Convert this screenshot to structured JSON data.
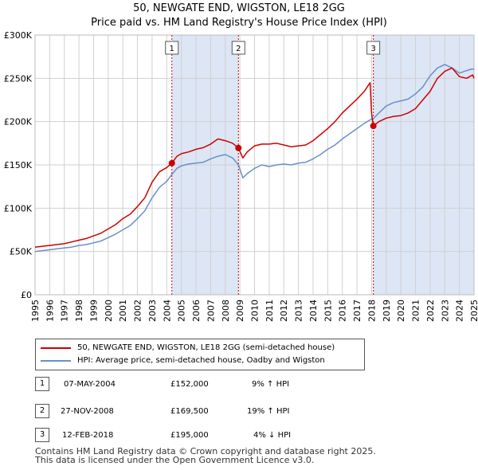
{
  "title": "50, NEWGATE END, WIGSTON, LE18 2GG",
  "subtitle": "Price paid vs. HM Land Registry's House Price Index (HPI)",
  "colors": {
    "price": "#cc0000",
    "hpi": "#6a8fc8",
    "shade": "#dde6f5",
    "marker_line": "#cc0000"
  },
  "chart_data": {
    "type": "line",
    "xlim": [
      1995,
      2025
    ],
    "ylim": [
      0,
      300000
    ],
    "y_ticks": [
      {
        "value": 0,
        "label": "£0"
      },
      {
        "value": 50000,
        "label": "£50K"
      },
      {
        "value": 100000,
        "label": "£100K"
      },
      {
        "value": 150000,
        "label": "£150K"
      },
      {
        "value": 200000,
        "label": "£200K"
      },
      {
        "value": 250000,
        "label": "£250K"
      },
      {
        "value": 300000,
        "label": "£300K"
      }
    ],
    "x_ticks": [
      "1995",
      "1996",
      "1997",
      "1998",
      "1999",
      "2000",
      "2001",
      "2002",
      "2003",
      "2004",
      "2005",
      "2006",
      "2007",
      "2008",
      "2009",
      "2010",
      "2011",
      "2012",
      "2013",
      "2014",
      "2015",
      "2016",
      "2017",
      "2018",
      "2019",
      "2020",
      "2021",
      "2022",
      "2023",
      "2024",
      "2025"
    ],
    "series": [
      {
        "name": "50, NEWGATE END, WIGSTON, LE18 2GG (semi-detached house)",
        "color": "#cc0000",
        "x": [
          1995.0,
          1995.5,
          1996.0,
          1996.5,
          1997.0,
          1997.5,
          1998.0,
          1998.5,
          1999.0,
          1999.5,
          2000.0,
          2000.5,
          2001.0,
          2001.5,
          2002.0,
          2002.5,
          2003.0,
          2003.5,
          2004.0,
          2004.35,
          2004.7,
          2005.0,
          2005.5,
          2006.0,
          2006.5,
          2007.0,
          2007.5,
          2008.0,
          2008.5,
          2008.9,
          2009.2,
          2009.5,
          2010.0,
          2010.5,
          2011.0,
          2011.5,
          2012.0,
          2012.5,
          2013.0,
          2013.5,
          2014.0,
          2014.5,
          2015.0,
          2015.5,
          2016.0,
          2016.5,
          2017.0,
          2017.5,
          2017.9,
          2018.0,
          2018.12,
          2018.5,
          2019.0,
          2019.5,
          2020.0,
          2020.5,
          2021.0,
          2021.5,
          2022.0,
          2022.5,
          2023.0,
          2023.5,
          2024.0,
          2024.5,
          2024.9,
          2025.0
        ],
        "y": [
          55000,
          56000,
          57000,
          58000,
          59000,
          61000,
          63000,
          65000,
          68000,
          71000,
          76000,
          81000,
          88000,
          93000,
          102000,
          112000,
          130000,
          142000,
          147000,
          152000,
          160000,
          163000,
          165000,
          168000,
          170000,
          174000,
          180000,
          178000,
          175000,
          169500,
          158000,
          165000,
          172000,
          174000,
          174000,
          175000,
          173000,
          171000,
          172000,
          173000,
          178000,
          185000,
          192000,
          200000,
          210000,
          218000,
          226000,
          235000,
          245000,
          210000,
          195000,
          200000,
          204000,
          206000,
          207000,
          210000,
          215000,
          225000,
          235000,
          250000,
          258000,
          262000,
          252000,
          250000,
          254000,
          250000
        ]
      },
      {
        "name": "HPI: Average price, semi-detached house, Oadby and Wigston",
        "color": "#6a8fc8",
        "x": [
          1995.0,
          1995.5,
          1996.0,
          1996.5,
          1997.0,
          1997.5,
          1998.0,
          1998.5,
          1999.0,
          1999.5,
          2000.0,
          2000.5,
          2001.0,
          2001.5,
          2002.0,
          2002.5,
          2003.0,
          2003.5,
          2004.0,
          2004.35,
          2004.7,
          2005.0,
          2005.5,
          2006.0,
          2006.5,
          2007.0,
          2007.5,
          2008.0,
          2008.5,
          2008.9,
          2009.2,
          2009.5,
          2010.0,
          2010.5,
          2011.0,
          2011.5,
          2012.0,
          2012.5,
          2013.0,
          2013.5,
          2014.0,
          2014.5,
          2015.0,
          2015.5,
          2016.0,
          2016.5,
          2017.0,
          2017.5,
          2017.9,
          2018.0,
          2018.12,
          2018.5,
          2019.0,
          2019.5,
          2020.0,
          2020.5,
          2021.0,
          2021.5,
          2022.0,
          2022.5,
          2023.0,
          2023.5,
          2024.0,
          2024.5,
          2024.9,
          2025.0
        ],
        "y": [
          50000,
          51000,
          52000,
          53000,
          54000,
          55000,
          57000,
          58000,
          60000,
          62000,
          66000,
          70000,
          75000,
          80000,
          88000,
          97000,
          112000,
          124000,
          131000,
          139000,
          146000,
          149000,
          151000,
          152000,
          153000,
          157000,
          160000,
          162000,
          158000,
          150000,
          135000,
          140000,
          146000,
          150000,
          148000,
          150000,
          151000,
          150000,
          152000,
          153000,
          157000,
          162000,
          168000,
          173000,
          180000,
          186000,
          192000,
          198000,
          202000,
          203000,
          203500,
          210000,
          218000,
          222000,
          224000,
          226000,
          232000,
          240000,
          253000,
          262000,
          266000,
          262000,
          256000,
          259000,
          261000,
          260000
        ]
      }
    ],
    "markers": [
      {
        "label": "1",
        "x": 2004.35,
        "y": 152000
      },
      {
        "label": "2",
        "x": 2008.9,
        "y": 169500
      },
      {
        "label": "3",
        "x": 2018.12,
        "y": 195000
      }
    ],
    "shaded_ranges": [
      [
        2004.35,
        2008.9
      ],
      [
        2018.12,
        2025.0
      ]
    ]
  },
  "legend": {
    "price_label": "50, NEWGATE END, WIGSTON, LE18 2GG (semi-detached house)",
    "hpi_label": "HPI: Average price, semi-detached house, Oadby and Wigston"
  },
  "transactions": [
    {
      "num": "1",
      "date": "07-MAY-2004",
      "price": "£152,000",
      "hpi": "9% ↑ HPI"
    },
    {
      "num": "2",
      "date": "27-NOV-2008",
      "price": "£169,500",
      "hpi": "19% ↑ HPI"
    },
    {
      "num": "3",
      "date": "12-FEB-2018",
      "price": "£195,000",
      "hpi": "4% ↓ HPI"
    }
  ],
  "footer": {
    "line1": "Contains HM Land Registry data © Crown copyright and database right 2025.",
    "line2": "This data is licensed under the Open Government Licence v3.0."
  }
}
